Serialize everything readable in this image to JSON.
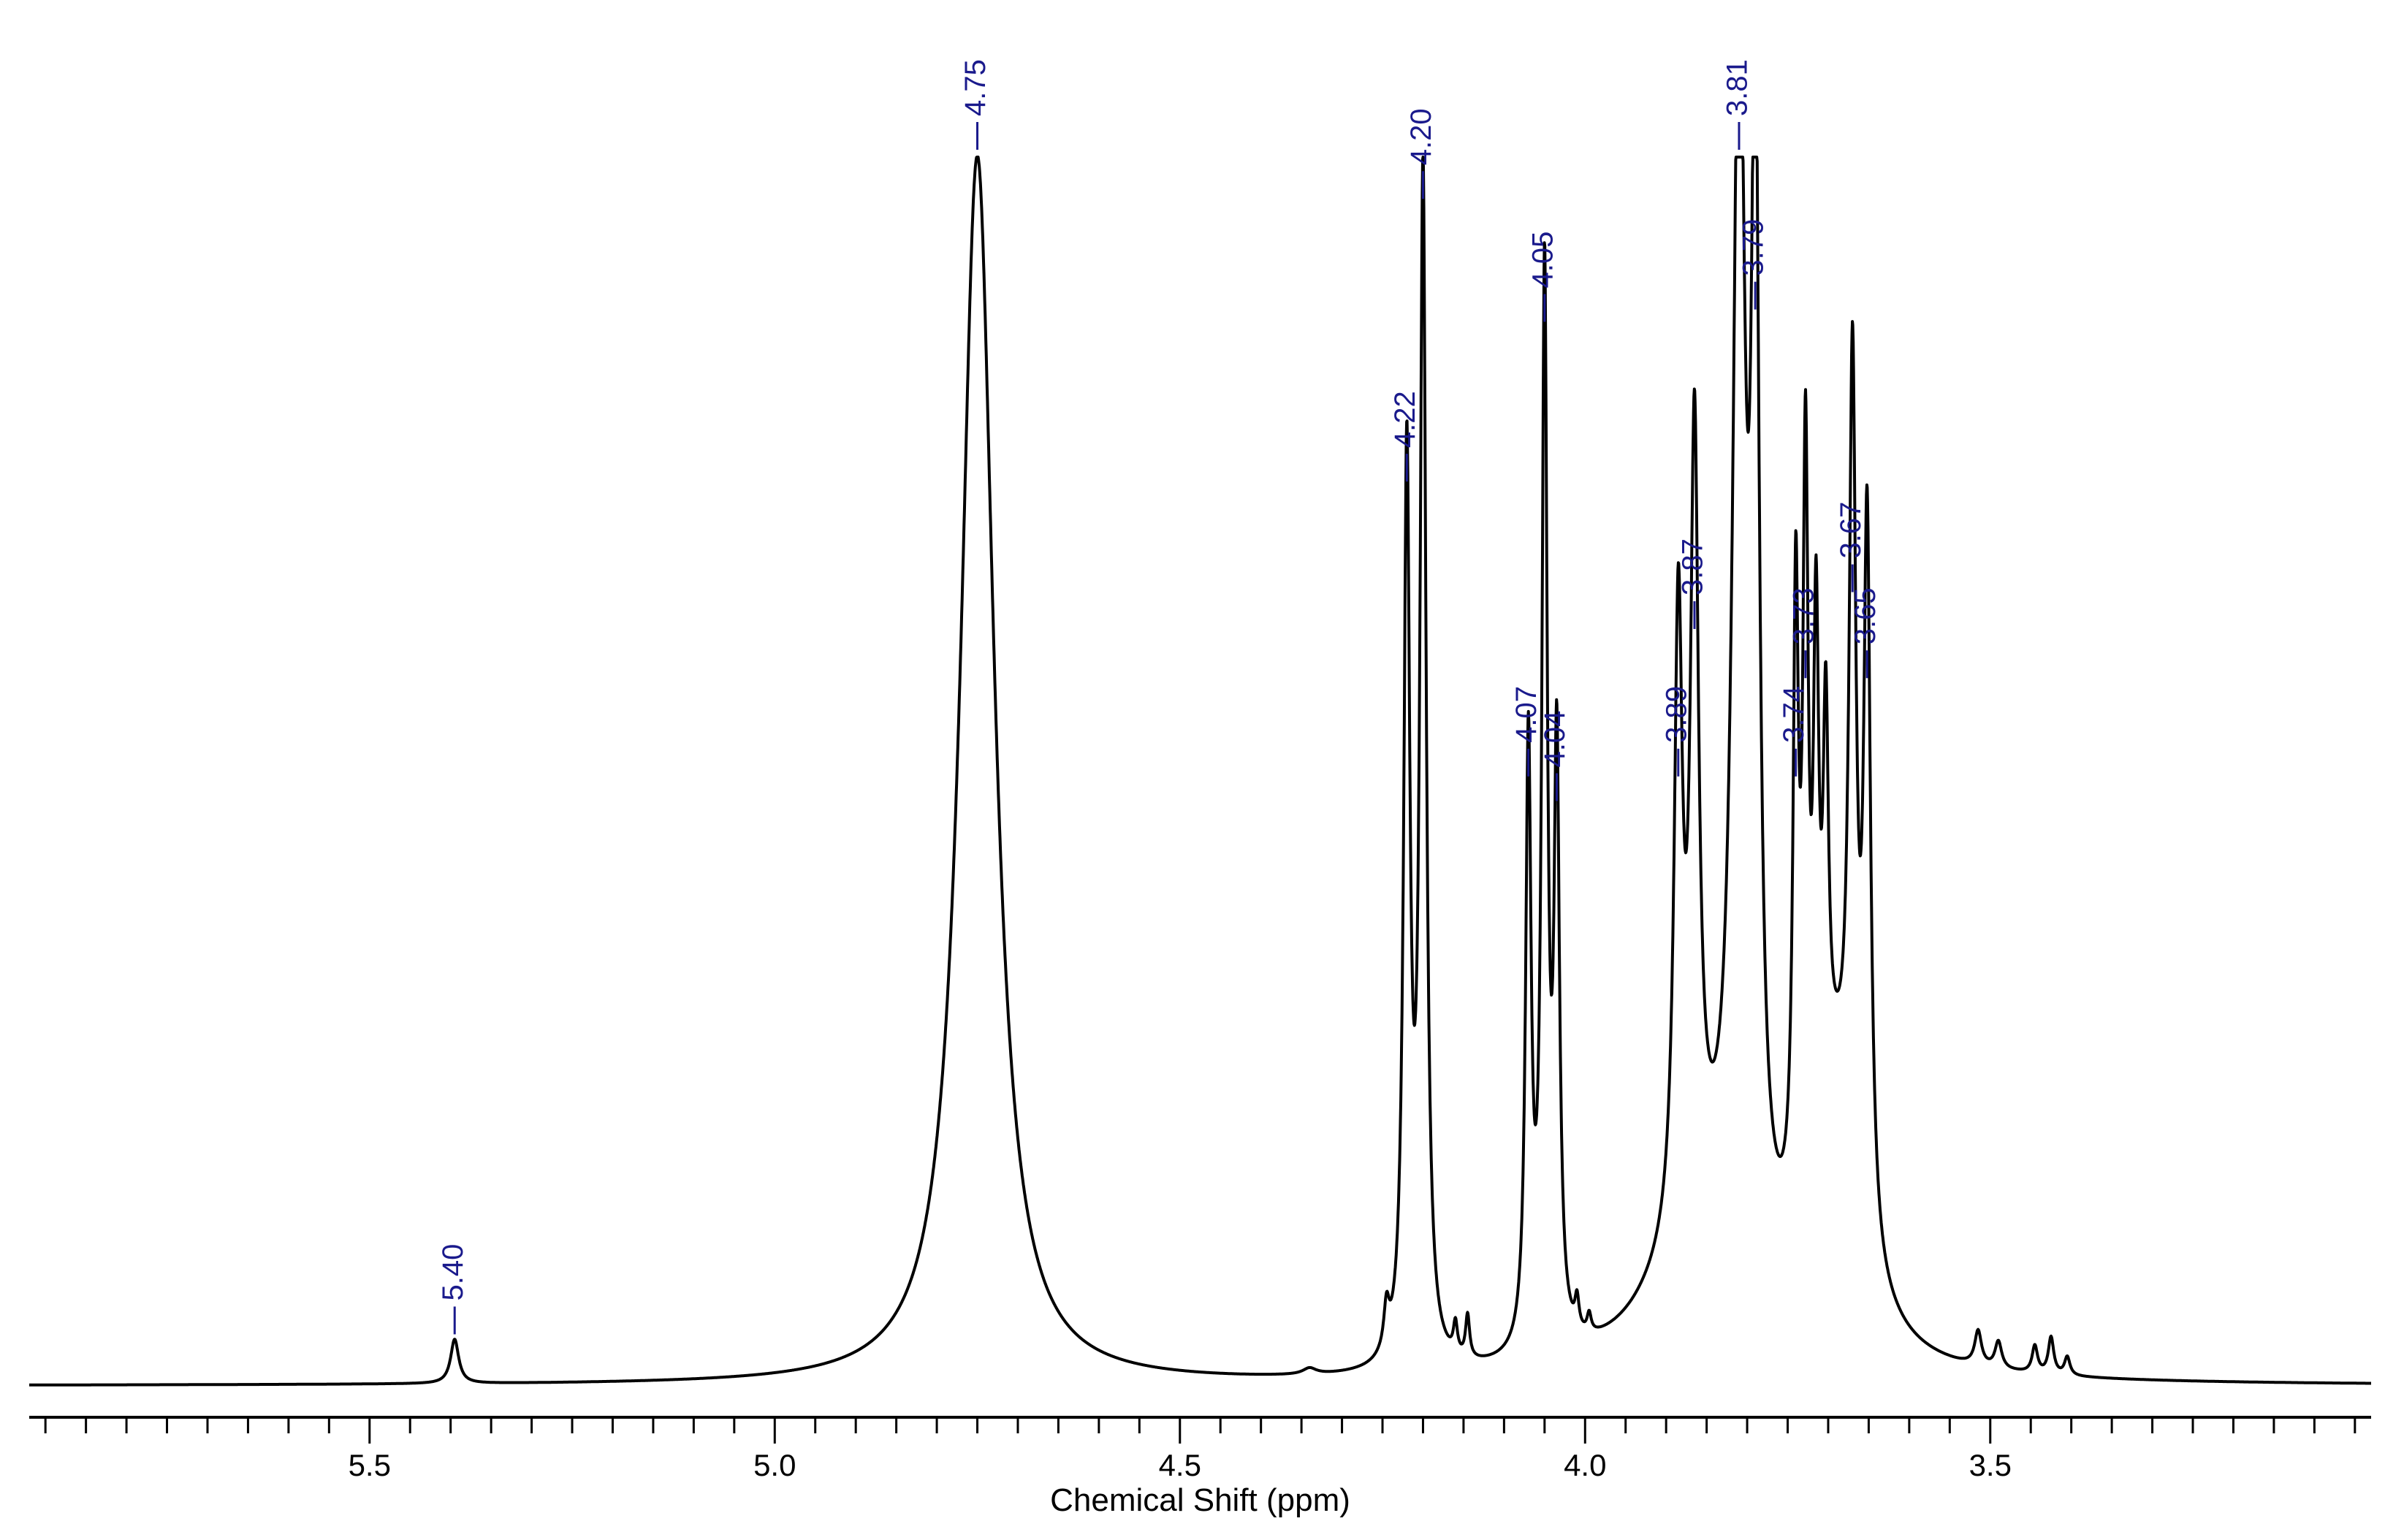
{
  "chart_data": {
    "type": "line",
    "title": "",
    "xlabel": "Chemical Shift (ppm)",
    "ylabel": "",
    "xlim": [
      5.92,
      3.03
    ],
    "ylim": [
      0,
      1.0
    ],
    "x_reversed": true,
    "grid": false,
    "major_ticks": [
      5.5,
      5.0,
      4.5,
      4.0,
      3.5
    ],
    "major_tick_labels": [
      "5.5",
      "5.0",
      "4.5",
      "4.0",
      "3.5"
    ],
    "minor_tick_step": 0.05,
    "line_color": "#000000",
    "label_color": "#1a1a8c",
    "peaks": [
      {
        "label": "5.40",
        "shift": 5.395,
        "height": 0.036,
        "width": 0.006
      },
      {
        "label": "4.75",
        "shift": 4.75,
        "height": 1.0,
        "width": 0.025,
        "clipped": true
      },
      {
        "label": "4.22",
        "shift": 4.22,
        "height": 0.73,
        "width": 0.0045
      },
      {
        "label": "4.20",
        "shift": 4.2,
        "height": 0.96,
        "width": 0.0045
      },
      {
        "label": "4.07",
        "shift": 4.07,
        "height": 0.49,
        "width": 0.004
      },
      {
        "label": "4.05",
        "shift": 4.05,
        "height": 0.86,
        "width": 0.004
      },
      {
        "label": "4.04",
        "shift": 4.035,
        "height": 0.47,
        "width": 0.004
      },
      {
        "label": "3.89",
        "shift": 3.885,
        "height": 0.49,
        "width": 0.006
      },
      {
        "label": "3.87",
        "shift": 3.865,
        "height": 0.61,
        "width": 0.006
      },
      {
        "label": "3.81",
        "shift": 3.81,
        "height": 1.0,
        "width": 0.009,
        "clipped": true
      },
      {
        "label": "3.79",
        "shift": 3.79,
        "height": 0.87,
        "width": 0.006
      },
      {
        "label": "3.74",
        "shift": 3.74,
        "height": 0.49,
        "width": 0.004
      },
      {
        "label": "3.73",
        "shift": 3.728,
        "height": 0.57,
        "width": 0.004
      },
      {
        "label": "3.67",
        "shift": 3.67,
        "height": 0.64,
        "width": 0.005
      },
      {
        "label": "3.65",
        "shift": 3.652,
        "height": 0.57,
        "width": 0.005
      }
    ],
    "minor_peaks": [
      {
        "shift": 4.245,
        "height": 0.035,
        "width": 0.004
      },
      {
        "shift": 4.16,
        "height": 0.025,
        "width": 0.003
      },
      {
        "shift": 4.145,
        "height": 0.035,
        "width": 0.003
      },
      {
        "shift": 4.01,
        "height": 0.025,
        "width": 0.003
      },
      {
        "shift": 3.995,
        "height": 0.015,
        "width": 0.003
      },
      {
        "shift": 3.715,
        "height": 0.4,
        "width": 0.004
      },
      {
        "shift": 3.703,
        "height": 0.3,
        "width": 0.004
      },
      {
        "shift": 3.515,
        "height": 0.028,
        "width": 0.005
      },
      {
        "shift": 3.49,
        "height": 0.022,
        "width": 0.005
      },
      {
        "shift": 3.445,
        "height": 0.022,
        "width": 0.004
      },
      {
        "shift": 3.425,
        "height": 0.03,
        "width": 0.004
      },
      {
        "shift": 3.405,
        "height": 0.015,
        "width": 0.004
      },
      {
        "shift": 4.34,
        "height": 0.005,
        "width": 0.01
      }
    ],
    "broad_humps": [
      {
        "shift": 3.855,
        "height": 0.12,
        "width": 0.07
      },
      {
        "shift": 3.69,
        "height": 0.2,
        "width": 0.035
      }
    ]
  }
}
